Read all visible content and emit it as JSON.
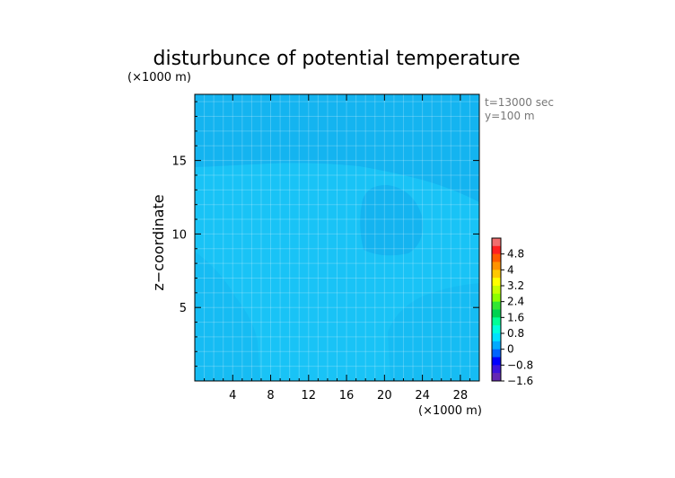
{
  "chart_data": {
    "type": "heatmap",
    "title": "disturbunce of potential temperature",
    "y_unit": "(×1000 m)",
    "x_unit": "(×1000 m)",
    "ylabel": "z−coordinate",
    "xlabel": "",
    "info_lines": [
      "t=13000 sec",
      "y=100 m"
    ],
    "xlim": [
      0,
      30
    ],
    "ylim": [
      0,
      19.5
    ],
    "x_ticks": [
      {
        "value": 4,
        "label": "4"
      },
      {
        "value": 8,
        "label": "8"
      },
      {
        "value": 12,
        "label": "12"
      },
      {
        "value": 16,
        "label": "16"
      },
      {
        "value": 20,
        "label": "20"
      },
      {
        "value": 24,
        "label": "24"
      },
      {
        "value": 28,
        "label": "28"
      }
    ],
    "y_ticks": [
      {
        "value": 5,
        "label": "5"
      },
      {
        "value": 10,
        "label": "10"
      },
      {
        "value": 15,
        "label": "15"
      }
    ],
    "grid": true,
    "colorbar": {
      "levels": [
        {
          "value": 5.2,
          "label": "",
          "color": "#f06e6e"
        },
        {
          "value": 4.8,
          "label": "4.8",
          "color": "#ff2020"
        },
        {
          "value": 4.4,
          "label": "",
          "color": "#ff5a00"
        },
        {
          "value": 4.0,
          "label": "4",
          "color": "#ff9200"
        },
        {
          "value": 3.6,
          "label": "",
          "color": "#ffc800"
        },
        {
          "value": 3.2,
          "label": "3.2",
          "color": "#ffff00"
        },
        {
          "value": 2.8,
          "label": "",
          "color": "#c8ff00"
        },
        {
          "value": 2.4,
          "label": "2.4",
          "color": "#8cff00"
        },
        {
          "value": 2.0,
          "label": "",
          "color": "#32e632"
        },
        {
          "value": 1.6,
          "label": "1.6",
          "color": "#00d250"
        },
        {
          "value": 1.2,
          "label": "",
          "color": "#00ff96"
        },
        {
          "value": 0.8,
          "label": "0.8",
          "color": "#00ffdc"
        },
        {
          "value": 0.4,
          "label": "",
          "color": "#00e1ff"
        },
        {
          "value": 0.0,
          "label": "0",
          "color": "#00aaff"
        },
        {
          "value": -0.4,
          "label": "",
          "color": "#0064ff"
        },
        {
          "value": -0.8,
          "label": "−0.8",
          "color": "#0000ff"
        },
        {
          "value": -1.2,
          "label": "",
          "color": "#3c14dc"
        },
        {
          "value": -1.6,
          "label": "−1.6",
          "color": "#6428b4"
        }
      ]
    },
    "field": {
      "background_value": 0.2,
      "background_color": "#19c3f6",
      "regions": [
        {
          "name": "upper band",
          "value": 0.0,
          "color": "#14b4f0"
        },
        {
          "name": "mid-right cell",
          "value": 0.0,
          "color": "#14b4f0"
        },
        {
          "name": "lower-left column",
          "value": 0.1,
          "color": "#16bcf3"
        },
        {
          "name": "lower-right column",
          "value": 0.1,
          "color": "#16bcf3"
        }
      ]
    }
  }
}
